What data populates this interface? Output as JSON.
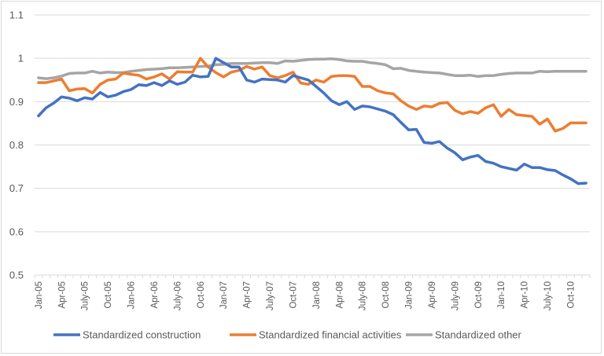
{
  "chart_data": {
    "type": "line",
    "title": "",
    "xlabel": "",
    "ylabel": "",
    "ylim": [
      0.5,
      1.1
    ],
    "yticks": [
      "0.5",
      "0.6",
      "0.7",
      "0.8",
      "0.9",
      "1",
      "1.1"
    ],
    "ytick_values": [
      0.5,
      0.6,
      0.7,
      0.8,
      0.9,
      1.0,
      1.1
    ],
    "grid": true,
    "legend_position": "bottom",
    "x_labels_shown": [
      "Jan-05",
      "Apr-05",
      "July-05",
      "Oct-05",
      "Jan-06",
      "Apr-06",
      "July-06",
      "Oct-06",
      "Jan-07",
      "Apr-07",
      "July-07",
      "Oct-07",
      "Jan-08",
      "Apr-08",
      "July-08",
      "Oct-08",
      "Jan-09",
      "Apr-09",
      "July-09",
      "Oct-09",
      "Jan-10",
      "Apr-10",
      "July-10",
      "Oct-10"
    ],
    "x_count": 72,
    "series": [
      {
        "name": "Standardized construction",
        "color": "#4472c4",
        "values": [
          0.867,
          0.886,
          0.897,
          0.911,
          0.908,
          0.902,
          0.909,
          0.906,
          0.921,
          0.911,
          0.915,
          0.923,
          0.928,
          0.939,
          0.937,
          0.944,
          0.937,
          0.948,
          0.94,
          0.945,
          0.961,
          0.957,
          0.958,
          1.0,
          0.99,
          0.98,
          0.98,
          0.95,
          0.945,
          0.952,
          0.951,
          0.95,
          0.945,
          0.96,
          0.955,
          0.95,
          0.935,
          0.92,
          0.902,
          0.893,
          0.9,
          0.882,
          0.89,
          0.888,
          0.883,
          0.878,
          0.87,
          0.852,
          0.835,
          0.836,
          0.806,
          0.804,
          0.808,
          0.793,
          0.782,
          0.766,
          0.772,
          0.776,
          0.762,
          0.758,
          0.75,
          0.746,
          0.742,
          0.756,
          0.748,
          0.748,
          0.743,
          0.741,
          0.731,
          0.722,
          0.711,
          0.712
        ]
      },
      {
        "name": "Standardized financial activities",
        "color": "#ed7d31",
        "values": [
          0.944,
          0.944,
          0.948,
          0.952,
          0.925,
          0.929,
          0.93,
          0.92,
          0.94,
          0.95,
          0.952,
          0.966,
          0.963,
          0.961,
          0.952,
          0.957,
          0.964,
          0.952,
          0.969,
          0.968,
          0.968,
          1.0,
          0.98,
          0.967,
          0.957,
          0.968,
          0.972,
          0.981,
          0.975,
          0.98,
          0.96,
          0.955,
          0.96,
          0.968,
          0.943,
          0.94,
          0.95,
          0.945,
          0.958,
          0.96,
          0.96,
          0.958,
          0.935,
          0.935,
          0.925,
          0.92,
          0.918,
          0.902,
          0.89,
          0.882,
          0.89,
          0.888,
          0.896,
          0.898,
          0.88,
          0.872,
          0.877,
          0.873,
          0.886,
          0.893,
          0.866,
          0.882,
          0.87,
          0.868,
          0.866,
          0.848,
          0.86,
          0.832,
          0.838,
          0.851,
          0.851,
          0.851
        ]
      },
      {
        "name": "Standardized other",
        "color": "#a5a5a5",
        "values": [
          0.955,
          0.953,
          0.955,
          0.959,
          0.965,
          0.966,
          0.966,
          0.97,
          0.966,
          0.968,
          0.967,
          0.967,
          0.97,
          0.972,
          0.974,
          0.975,
          0.976,
          0.978,
          0.978,
          0.979,
          0.98,
          0.981,
          0.982,
          0.985,
          0.986,
          0.988,
          0.988,
          0.988,
          0.989,
          0.99,
          0.99,
          0.988,
          0.994,
          0.993,
          0.995,
          0.997,
          0.998,
          0.998,
          0.999,
          0.997,
          0.994,
          0.993,
          0.993,
          0.99,
          0.988,
          0.985,
          0.976,
          0.977,
          0.972,
          0.97,
          0.968,
          0.967,
          0.966,
          0.963,
          0.96,
          0.96,
          0.961,
          0.958,
          0.96,
          0.96,
          0.963,
          0.965,
          0.966,
          0.966,
          0.966,
          0.97,
          0.969,
          0.97,
          0.97,
          0.97,
          0.97,
          0.97
        ]
      }
    ]
  }
}
